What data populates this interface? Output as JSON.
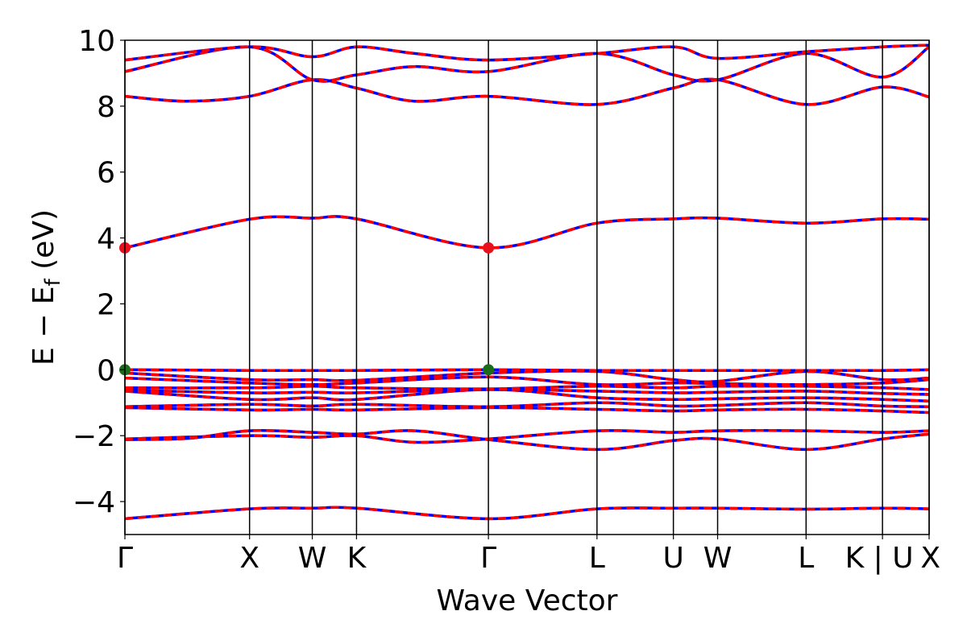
{
  "chart_data": {
    "type": "line",
    "xlabel": "Wave Vector",
    "ylabel_main": "E − E",
    "ylabel_sub": "f",
    "ylabel_unit": " (eV)",
    "ylim": [
      -5,
      10
    ],
    "yticks": [
      -4,
      -2,
      0,
      2,
      4,
      6,
      8,
      10
    ],
    "ytick_labels": [
      "−4",
      "−2",
      "0",
      "2",
      "4",
      "6",
      "8",
      "10"
    ],
    "xlim": [
      0,
      1
    ],
    "kpoints": [
      {
        "label": "Γ",
        "x": 0.0
      },
      {
        "label": "X",
        "x": 0.155
      },
      {
        "label": "W",
        "x": 0.233
      },
      {
        "label": "K",
        "x": 0.288
      },
      {
        "label": "Γ",
        "x": 0.452
      },
      {
        "label": "L",
        "x": 0.587
      },
      {
        "label": "U",
        "x": 0.682
      },
      {
        "label": "W",
        "x": 0.737
      },
      {
        "label": "L",
        "x": 0.847
      },
      {
        "label": "K | U",
        "x": 0.942
      },
      {
        "label": "X",
        "x": 1.0
      }
    ],
    "grid": false,
    "series_style": {
      "spin_up_color": "#0000ff",
      "spin_down_color": "#ff0000",
      "dashed": true
    },
    "bands": [
      {
        "name": "",
        "x": [
          0,
          0.155,
          0.233,
          0.288,
          0.452,
          0.587,
          0.682,
          0.737,
          0.847,
          0.942,
          1.0
        ],
        "y": [
          -4.52,
          -4.22,
          -4.2,
          -4.2,
          -4.52,
          -4.22,
          -4.2,
          -4.2,
          -4.23,
          -4.2,
          -4.22
        ]
      },
      {
        "name": "",
        "x": [
          0,
          0.08,
          0.155,
          0.233,
          0.288,
          0.36,
          0.452,
          0.587,
          0.682,
          0.737,
          0.847,
          0.942,
          1.0
        ],
        "y": [
          -2.12,
          -2.08,
          -1.85,
          -1.9,
          -1.95,
          -1.85,
          -2.12,
          -2.42,
          -2.15,
          -2.1,
          -2.42,
          -2.1,
          -1.95
        ]
      },
      {
        "name": "",
        "x": [
          0,
          0.155,
          0.233,
          0.288,
          0.36,
          0.452,
          0.587,
          0.682,
          0.737,
          0.847,
          0.942,
          1.0
        ],
        "y": [
          -2.1,
          -2.0,
          -2.05,
          -2.0,
          -2.2,
          -2.1,
          -1.85,
          -1.9,
          -1.85,
          -1.85,
          -1.9,
          -1.85
        ]
      },
      {
        "name": "",
        "x": [
          0,
          0.155,
          0.233,
          0.288,
          0.452,
          0.587,
          0.682,
          0.737,
          0.847,
          0.942,
          1.0
        ],
        "y": [
          -1.15,
          -1.22,
          -1.2,
          -1.22,
          -1.15,
          -1.2,
          -1.25,
          -1.22,
          -1.2,
          -1.25,
          -1.3
        ]
      },
      {
        "name": "",
        "x": [
          0,
          0.155,
          0.233,
          0.288,
          0.452,
          0.587,
          0.682,
          0.737,
          0.847,
          0.942,
          1.0
        ],
        "y": [
          -1.12,
          -1.05,
          -1.1,
          -1.05,
          -1.12,
          -1.0,
          -1.1,
          -1.08,
          -1.0,
          -1.1,
          -1.12
        ]
      },
      {
        "name": "",
        "x": [
          0,
          0.155,
          0.233,
          0.288,
          0.452,
          0.587,
          0.682,
          0.737,
          0.847,
          0.942,
          1.0
        ],
        "y": [
          -0.65,
          -0.9,
          -0.85,
          -0.9,
          -0.6,
          -0.85,
          -0.9,
          -0.88,
          -0.85,
          -0.9,
          -0.95
        ]
      },
      {
        "name": "",
        "x": [
          0,
          0.155,
          0.233,
          0.288,
          0.452,
          0.587,
          0.682,
          0.737,
          0.847,
          0.942,
          1.0
        ],
        "y": [
          -0.62,
          -0.7,
          -0.68,
          -0.7,
          -0.6,
          -0.65,
          -0.7,
          -0.68,
          -0.65,
          -0.72,
          -0.75
        ]
      },
      {
        "name": "",
        "x": [
          0,
          0.155,
          0.233,
          0.288,
          0.452,
          0.587,
          0.682,
          0.737,
          0.847,
          0.942,
          1.0
        ],
        "y": [
          -0.55,
          -0.55,
          -0.5,
          -0.55,
          -0.58,
          -0.5,
          -0.55,
          -0.5,
          -0.5,
          -0.55,
          -0.6
        ]
      },
      {
        "name": "",
        "x": [
          0,
          0.155,
          0.233,
          0.288,
          0.452,
          0.587,
          0.682,
          0.737,
          0.847,
          0.942,
          1.0
        ],
        "y": [
          -0.25,
          -0.4,
          -0.45,
          -0.4,
          -0.22,
          -0.45,
          -0.4,
          -0.42,
          -0.45,
          -0.4,
          -0.3
        ]
      },
      {
        "name": "",
        "x": [
          0,
          0.155,
          0.233,
          0.288,
          0.452,
          0.587,
          0.682,
          0.737,
          0.847,
          0.942,
          1.0
        ],
        "y": [
          -0.1,
          -0.3,
          -0.3,
          -0.32,
          -0.1,
          -0.05,
          -0.3,
          -0.35,
          -0.05,
          -0.3,
          -0.25
        ]
      },
      {
        "name": "",
        "x": [
          0,
          0.155,
          0.233,
          0.288,
          0.452,
          0.587,
          0.682,
          0.737,
          0.847,
          0.942,
          1.0
        ],
        "y": [
          0.0,
          -0.02,
          -0.02,
          -0.02,
          0.0,
          -0.02,
          -0.02,
          -0.02,
          -0.02,
          -0.02,
          0.0
        ]
      },
      {
        "name": "",
        "x": [
          0,
          0.155,
          0.233,
          0.288,
          0.452,
          0.587,
          0.682,
          0.737,
          0.847,
          0.942,
          1.0
        ],
        "y": [
          3.7,
          4.57,
          4.6,
          4.58,
          3.7,
          4.45,
          4.58,
          4.6,
          4.45,
          4.58,
          4.57
        ]
      },
      {
        "name": "",
        "x": [
          0,
          0.075,
          0.155,
          0.233,
          0.288,
          0.36,
          0.452,
          0.587,
          0.682,
          0.737,
          0.847,
          0.942,
          1.0
        ],
        "y": [
          8.3,
          8.15,
          8.3,
          8.8,
          8.55,
          8.15,
          8.3,
          8.05,
          8.55,
          8.8,
          8.05,
          8.58,
          8.28
        ]
      },
      {
        "name": "",
        "x": [
          0,
          0.155,
          0.233,
          0.288,
          0.36,
          0.452,
          0.587,
          0.682,
          0.737,
          0.847,
          0.942,
          1.0
        ],
        "y": [
          9.05,
          9.8,
          8.8,
          8.95,
          9.2,
          9.05,
          9.6,
          8.95,
          8.8,
          9.6,
          8.88,
          9.8
        ]
      },
      {
        "name": "",
        "x": [
          0,
          0.155,
          0.233,
          0.288,
          0.36,
          0.452,
          0.587,
          0.682,
          0.737,
          0.847,
          0.942,
          1.0
        ],
        "y": [
          9.4,
          9.8,
          9.5,
          9.8,
          9.6,
          9.4,
          9.6,
          9.8,
          9.45,
          9.65,
          9.8,
          9.85
        ]
      }
    ],
    "markers": [
      {
        "x": 0.0,
        "y": 3.7,
        "color": "#e8121c"
      },
      {
        "x": 0.452,
        "y": 3.7,
        "color": "#e8121c"
      },
      {
        "x": 0.0,
        "y": 0.0,
        "color": "#1a6b1a"
      },
      {
        "x": 0.452,
        "y": 0.0,
        "color": "#1a6b1a"
      }
    ]
  }
}
